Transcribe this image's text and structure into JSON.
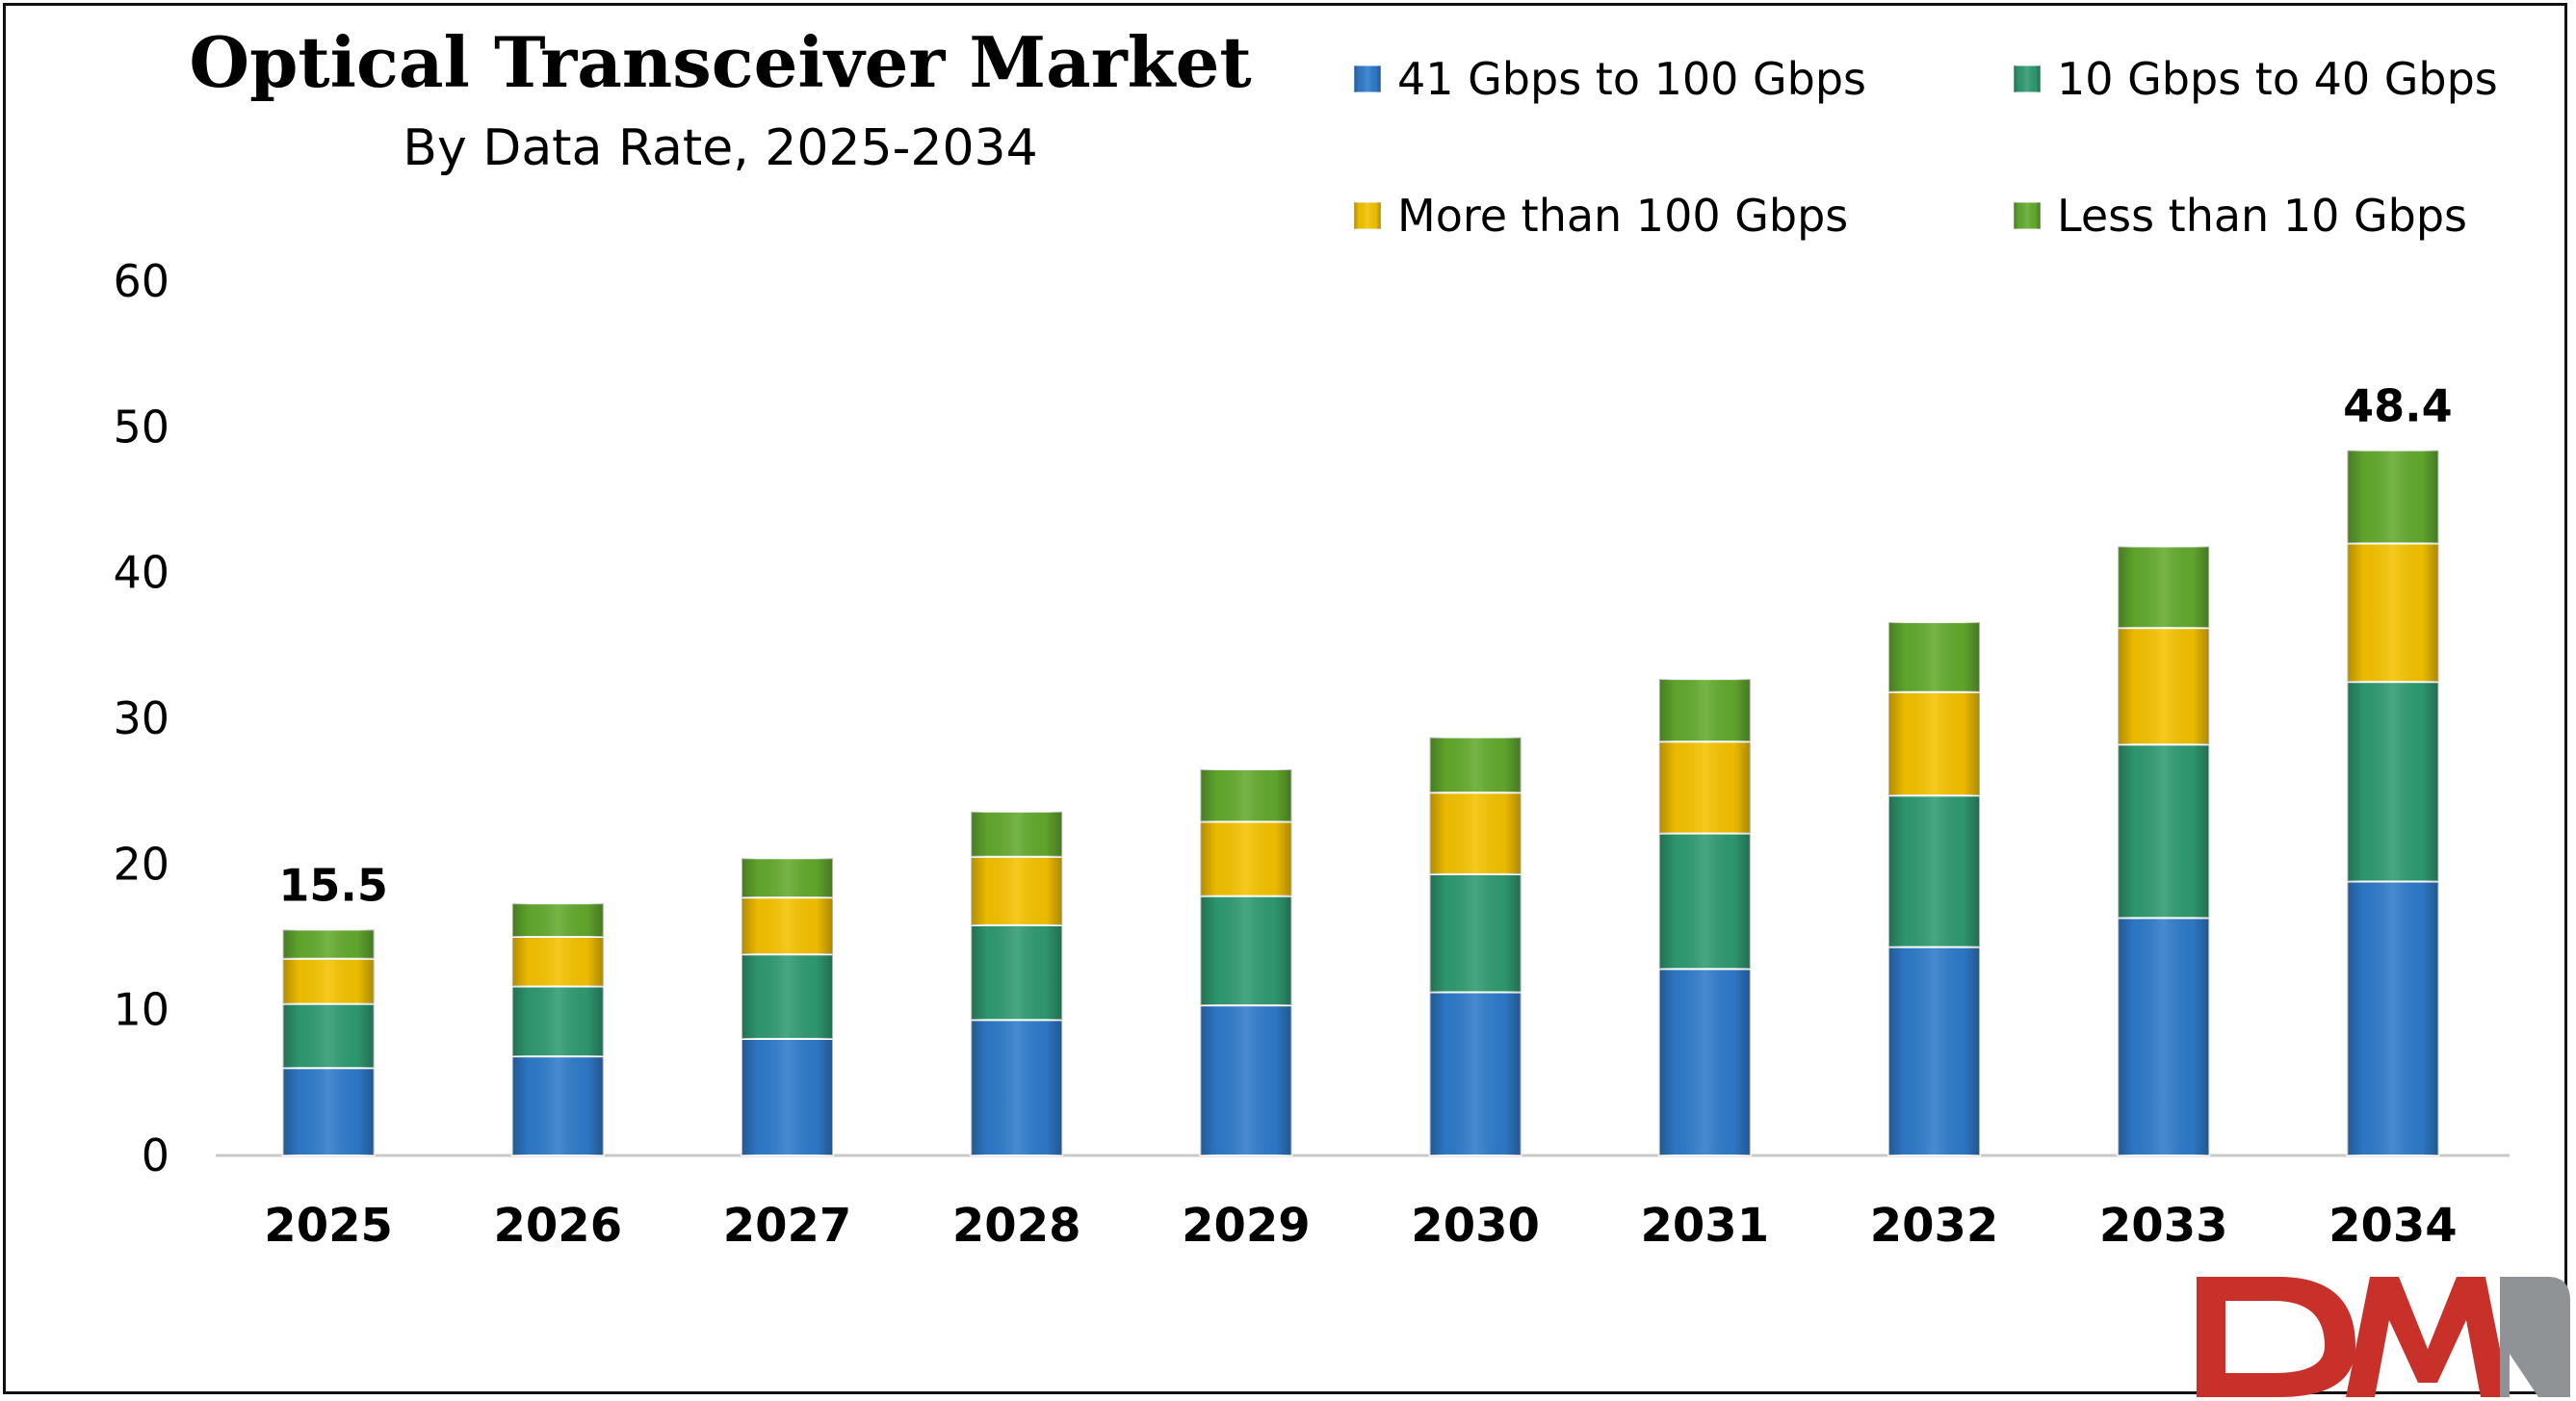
{
  "chart_data": {
    "type": "bar",
    "stacked": true,
    "title": "Optical Transceiver Market",
    "subtitle": "By Data Rate, 2025-2034",
    "xlabel": "",
    "ylabel": "",
    "ylim": [
      0,
      60
    ],
    "yticks": [
      "0",
      "10",
      "20",
      "30",
      "40",
      "50",
      "60"
    ],
    "grid": false,
    "legend_position": "top-right",
    "categories": [
      "2025",
      "2026",
      "2027",
      "2028",
      "2029",
      "2030",
      "2031",
      "2032",
      "2033",
      "2034"
    ],
    "series": [
      {
        "name": "41 Gbps to 100 Gbps",
        "color": "#2F7BCB",
        "values": [
          6.0,
          6.8,
          8.0,
          9.3,
          10.3,
          11.2,
          12.8,
          14.3,
          16.3,
          18.8
        ]
      },
      {
        "name": "10 Gbps to 40 Gbps",
        "color": "#2F9B72",
        "values": [
          4.4,
          4.8,
          5.8,
          6.5,
          7.5,
          8.1,
          9.3,
          10.4,
          11.9,
          13.7
        ]
      },
      {
        "name": "More than 100 Gbps",
        "color": "#F5C200",
        "values": [
          3.1,
          3.4,
          3.9,
          4.7,
          5.1,
          5.6,
          6.3,
          7.1,
          8.0,
          9.5
        ]
      },
      {
        "name": "Less than 10 Gbps",
        "color": "#63AA2E",
        "values": [
          2.0,
          2.3,
          2.7,
          3.1,
          3.6,
          3.8,
          4.3,
          4.8,
          5.6,
          6.4
        ]
      }
    ],
    "annotations": [
      {
        "category": "2025",
        "text": "15.5"
      },
      {
        "category": "2034",
        "text": "48.4"
      }
    ]
  },
  "logo": {
    "text": "DMR",
    "color": "#C8302A"
  }
}
